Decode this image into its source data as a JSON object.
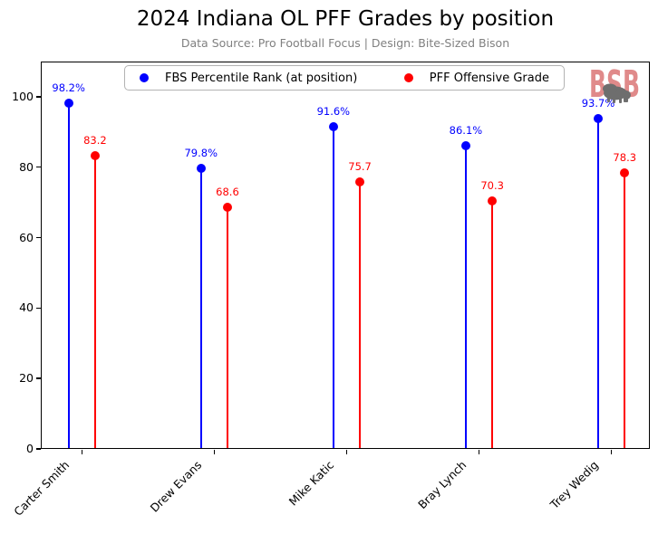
{
  "chart_data": {
    "type": "scatter",
    "variant": "lollipop-stem",
    "title": "2024 Indiana OL PFF Grades by position",
    "subtitle": "Data Source: Pro Football Focus | Design: Bite-Sized Bison",
    "categories": [
      "Carter Smith",
      "Drew Evans",
      "Mike Katic",
      "Bray Lynch",
      "Trey Wedig"
    ],
    "series": [
      {
        "key": "fbs-percentile-rank",
        "name": "FBS Percentile Rank (at position)",
        "color": "#0000ff",
        "offset": -0.1,
        "values": [
          98.2,
          79.8,
          91.6,
          86.1,
          93.7
        ],
        "labels": [
          "98.2%",
          "79.8%",
          "91.6%",
          "86.1%",
          "93.7%"
        ]
      },
      {
        "key": "pff-offensive-grade",
        "name": "PFF Offensive Grade",
        "color": "#ff0000",
        "offset": 0.1,
        "values": [
          83.2,
          68.6,
          75.7,
          70.3,
          78.3
        ],
        "labels": [
          "83.2",
          "68.6",
          "75.7",
          "70.3",
          "78.3"
        ]
      }
    ],
    "xlabel": "",
    "ylabel": "",
    "ylim": [
      0,
      110
    ],
    "yticks": [
      0,
      20,
      40,
      60,
      80,
      100
    ],
    "xlim": [
      -0.31,
      4.29
    ],
    "grid": false,
    "legend_position": "upper center",
    "watermark_text": "BSB",
    "watermark_color": "#e08a8a",
    "watermark_bison_color": "#6e6e6e"
  }
}
